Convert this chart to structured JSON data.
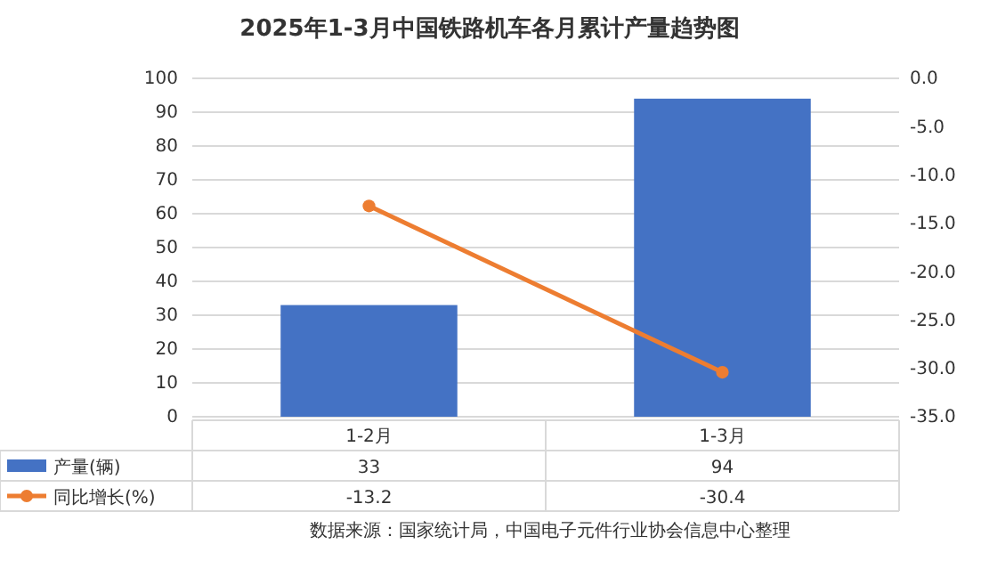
{
  "chart_data": {
    "type": "bar",
    "title": "2025年1-3月中国铁路机车各月累计产量趋势图",
    "categories": [
      "1-2月",
      "1-3月"
    ],
    "series": [
      {
        "name": "产量(辆)",
        "color": "#4472c4",
        "values": [
          33,
          94
        ]
      },
      {
        "name": "同比增长(%)",
        "type": "line",
        "axis": "y2",
        "color": "#ed7d31",
        "values": [
          -13.2,
          -30.4
        ]
      }
    ],
    "ylim": [
      0,
      100
    ],
    "yticks": [
      0,
      10,
      20,
      30,
      40,
      50,
      60,
      70,
      80,
      90,
      100
    ],
    "y2lim": [
      -35,
      0
    ],
    "y2ticks": [
      {
        "value": 0,
        "label": "0.0"
      },
      {
        "value": -5,
        "label": "-5.0"
      },
      {
        "value": -10,
        "label": "-10.0"
      },
      {
        "value": -15,
        "label": "-15.0"
      },
      {
        "value": -20,
        "label": "-20.0"
      },
      {
        "value": -25,
        "label": "-25.0"
      },
      {
        "value": -30,
        "label": "-30.0"
      },
      {
        "value": -35,
        "label": "-35.0"
      }
    ],
    "grid": "y",
    "legend": "bottom",
    "data_labels": true,
    "marker": "circle",
    "line_style": "solid",
    "annotations": [
      "数据来源：国家统计局，中国电子元件行业协会信息中心整理"
    ]
  }
}
